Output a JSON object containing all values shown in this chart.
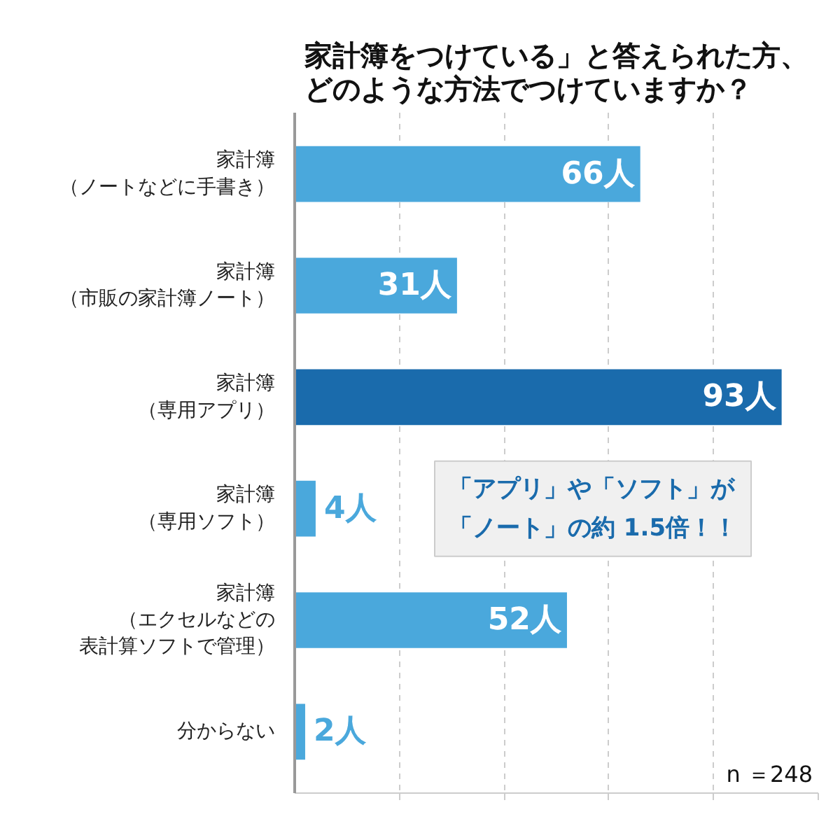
{
  "chart_data": {
    "type": "bar",
    "orientation": "horizontal",
    "title": "家計簿をつけている」と答えられた方、どのような方法でつけていますか？",
    "categories": [
      "家計簿（ノートなどに手書き）",
      "家計簿（市販の家計簿ノート）",
      "家計簿（専用アプリ）",
      "家計簿（専用ソフト）",
      "家計簿（エクセルなどの表計算ソフトで管理）",
      "分からない"
    ],
    "values": [
      66,
      31,
      93,
      4,
      52,
      2
    ],
    "colors": [
      "#4aa8dc",
      "#4aa8dc",
      "#1a6bac",
      "#4aa8dc",
      "#4aa8dc",
      "#4aa8dc"
    ],
    "value_labels": [
      "66人",
      "31人",
      "93人",
      "4人",
      "52人",
      "2人"
    ],
    "xlim": [
      0,
      100
    ],
    "xticks": [
      {
        "value": 20,
        "label": null
      },
      {
        "value": 40,
        "label": null
      },
      {
        "value": 60,
        "label": null
      },
      {
        "value": 80,
        "label": null
      },
      {
        "value": 100,
        "label": null
      }
    ],
    "tick_labels": "y",
    "grid": "x",
    "annotations": [
      "「アプリ」や「ソフト」が「ノート」の約 1.5倍！！",
      "n ＝248"
    ]
  }
}
